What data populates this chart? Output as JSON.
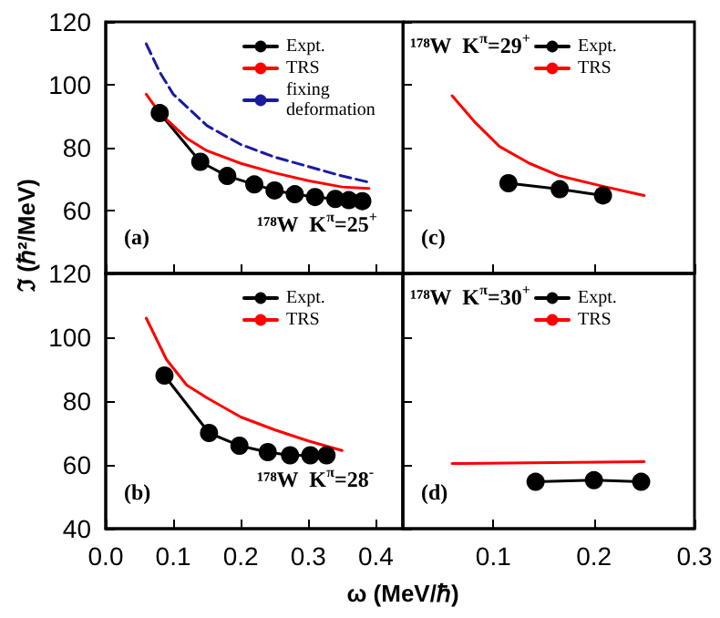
{
  "chart_data": [
    {
      "type": "line",
      "ylabel": "ℑ (ℏ²/MeV)",
      "xlim": [
        0,
        0.44
      ],
      "ylim": [
        40,
        120
      ],
      "xticks": [
        0,
        0.1,
        0.2,
        0.3,
        0.4
      ],
      "yticks": [
        60,
        80,
        100,
        120
      ],
      "tick_labels": "y",
      "grid": false,
      "legend": "top right",
      "annotations": [
        "(a)",
        "¹⁷⁸W  K$^{π}$=25$^{+}$"
      ],
      "series": [
        {
          "name": "Expt.",
          "color": "#000000",
          "marker": "circle",
          "line_style": "solid",
          "x": [
            0.08,
            0.14,
            0.18,
            0.22,
            0.25,
            0.28,
            0.31,
            0.34,
            0.36,
            0.38
          ],
          "values": [
            91,
            75.5,
            71,
            68.3,
            66.4,
            65.2,
            64.3,
            63.7,
            63.3,
            63
          ]
        },
        {
          "name": "TRS",
          "color": "#ff0000",
          "marker": "none",
          "line_style": "solid",
          "x": [
            0.06,
            0.08,
            0.12,
            0.15,
            0.2,
            0.25,
            0.3,
            0.35,
            0.39
          ],
          "values": [
            97,
            91,
            83,
            79,
            75,
            72,
            69.5,
            67.5,
            67
          ]
        },
        {
          "name": "fixing deformation",
          "color": "#1a1aa0",
          "marker": "none",
          "line_style": "dashed",
          "x": [
            0.06,
            0.08,
            0.1,
            0.15,
            0.2,
            0.25,
            0.3,
            0.35,
            0.39
          ],
          "values": [
            113,
            104,
            97,
            87,
            81,
            77,
            74,
            71,
            69
          ]
        }
      ]
    },
    {
      "type": "line",
      "xlabel": "ω (MeV/ℏ)",
      "xlim": [
        0,
        0.44
      ],
      "ylim": [
        40,
        120
      ],
      "xticks": [
        {
          "value": 0,
          "label": "0.0"
        },
        0.1,
        0.2,
        0.3,
        0.4
      ],
      "yticks": [
        40,
        60,
        80,
        100,
        120
      ],
      "grid": false,
      "legend": "top right",
      "annotations": [
        "(b)",
        "¹⁷⁸W  K$^{π}$=28$^{-}$"
      ],
      "series": [
        {
          "name": "Expt.",
          "color": "#000000",
          "marker": "circle",
          "line_style": "solid",
          "x": [
            0.087,
            0.153,
            0.198,
            0.24,
            0.273,
            0.303,
            0.327
          ],
          "values": [
            88,
            70,
            66,
            64,
            63,
            63,
            63
          ]
        },
        {
          "name": "TRS",
          "color": "#ff0000",
          "marker": "none",
          "line_style": "solid",
          "x": [
            0.06,
            0.09,
            0.12,
            0.15,
            0.2,
            0.25,
            0.3,
            0.35
          ],
          "values": [
            106,
            93,
            85,
            81,
            75,
            71,
            67.5,
            64.5
          ]
        }
      ]
    },
    {
      "type": "line",
      "xlim": [
        0.01,
        0.3
      ],
      "ylim": [
        40,
        120
      ],
      "xticks": [
        0.1,
        0.2,
        0.3
      ],
      "yticks": [
        40,
        60,
        80,
        100,
        120
      ],
      "tick_labels": false,
      "grid": false,
      "legend": "top right",
      "annotations": [
        "(c)",
        "¹⁷⁸W  K$^{π}$=29$^{+}$"
      ],
      "series": [
        {
          "name": "Expt.",
          "color": "#000000",
          "marker": "circle",
          "line_style": "solid",
          "x": [
            0.115,
            0.166,
            0.209
          ],
          "values": [
            68.7,
            66.8,
            64.8
          ]
        },
        {
          "name": "TRS",
          "color": "#ff0000",
          "marker": "none",
          "line_style": "solid",
          "x": [
            0.059,
            0.082,
            0.106,
            0.136,
            0.166,
            0.208,
            0.25
          ],
          "values": [
            96.5,
            88,
            80.4,
            75,
            71,
            67.8,
            64.8
          ]
        }
      ]
    },
    {
      "type": "line",
      "xlim": [
        0.01,
        0.3
      ],
      "ylim": [
        40,
        120
      ],
      "xticks": [
        0.1,
        0.2,
        0.3
      ],
      "yticks": [
        40,
        60,
        80,
        100,
        120
      ],
      "tick_labels": "x",
      "grid": false,
      "legend": "top right",
      "annotations": [
        "(d)",
        "¹⁷⁸W  K$^{π}$=30$^{+}$"
      ],
      "series": [
        {
          "name": "Expt.",
          "color": "#000000",
          "marker": "circle",
          "line_style": "solid",
          "x": [
            0.142,
            0.2,
            0.247
          ],
          "values": [
            54.7,
            55.2,
            54.7
          ]
        },
        {
          "name": "TRS",
          "color": "#ff0000",
          "marker": "none",
          "line_style": "solid",
          "x": [
            0.059,
            0.25
          ],
          "values": [
            60.4,
            61
          ]
        }
      ]
    }
  ]
}
